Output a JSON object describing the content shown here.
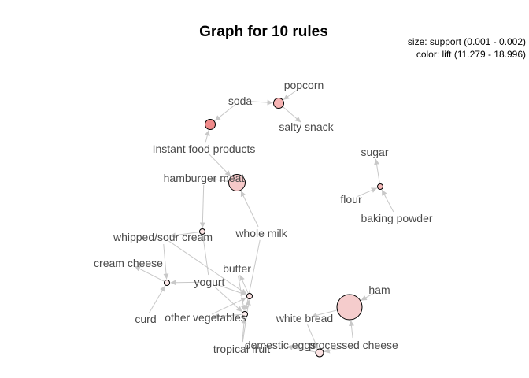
{
  "title": "Graph for 10 rules",
  "legend": {
    "size": "size: support (0.001 - 0.002)",
    "color": "color: lift (11.279 - 18.996)"
  },
  "colors": {
    "edge": "#c8c8c8",
    "node_stroke": "#000000",
    "label": "#4a4a4a"
  },
  "items": [
    {
      "id": "popcorn",
      "label": "popcorn"
    },
    {
      "id": "soda",
      "label": "soda"
    },
    {
      "id": "salty_snack",
      "label": "salty snack"
    },
    {
      "id": "instant_food",
      "label": "Instant food products"
    },
    {
      "id": "hamburger_meat",
      "label": "hamburger meat"
    },
    {
      "id": "sugar",
      "label": "sugar"
    },
    {
      "id": "flour",
      "label": "flour"
    },
    {
      "id": "baking_powder",
      "label": "baking powder"
    },
    {
      "id": "whole_milk",
      "label": "whole milk"
    },
    {
      "id": "whipped_sour_cream",
      "label": "whipped/sour cream"
    },
    {
      "id": "cream_cheese",
      "label": "cream cheese"
    },
    {
      "id": "butter",
      "label": "butter"
    },
    {
      "id": "yogurt",
      "label": "yogurt"
    },
    {
      "id": "ham",
      "label": "ham"
    },
    {
      "id": "curd",
      "label": "curd"
    },
    {
      "id": "other_vegetables",
      "label": "other vegetables"
    },
    {
      "id": "white_bread",
      "label": "white bread"
    },
    {
      "id": "domestic_eggs",
      "label": "domestic eggs"
    },
    {
      "id": "processed_cheese",
      "label": "processed cheese"
    },
    {
      "id": "tropical_fruit",
      "label": "tropical fruit"
    }
  ],
  "rules": [
    {
      "id": "r1",
      "fill": "#f6b3b3"
    },
    {
      "id": "r2",
      "fill": "#f08a8a"
    },
    {
      "id": "r3",
      "fill": "#f6c9c9"
    },
    {
      "id": "r4",
      "fill": "#f6b9b9"
    },
    {
      "id": "r5",
      "fill": "#fbe4e4"
    },
    {
      "id": "r6",
      "fill": "#fdeaea"
    },
    {
      "id": "r7",
      "fill": "#fce2e2"
    },
    {
      "id": "r8",
      "fill": "#fdeeee"
    },
    {
      "id": "r9",
      "fill": "#f5cccc"
    },
    {
      "id": "r10",
      "fill": "#fbe2e2"
    }
  ],
  "edges": [
    [
      "popcorn",
      "r1"
    ],
    [
      "soda",
      "r1"
    ],
    [
      "r1",
      "salty_snack"
    ],
    [
      "soda",
      "r2"
    ],
    [
      "instant_food",
      "r2"
    ],
    [
      "instant_food",
      "r3"
    ],
    [
      "whole_milk",
      "r3"
    ],
    [
      "r3",
      "hamburger_meat"
    ],
    [
      "flour",
      "r4"
    ],
    [
      "baking_powder",
      "r4"
    ],
    [
      "r4",
      "sugar"
    ],
    [
      "hamburger_meat",
      "r5"
    ],
    [
      "yogurt",
      "r5"
    ],
    [
      "r5",
      "whipped_sour_cream"
    ],
    [
      "whipped_sour_cream",
      "r6"
    ],
    [
      "yogurt",
      "r6"
    ],
    [
      "curd",
      "r6"
    ],
    [
      "r6",
      "cream_cheese"
    ],
    [
      "whipped_sour_cream",
      "r7"
    ],
    [
      "yogurt",
      "r7"
    ],
    [
      "other_vegetables",
      "r7"
    ],
    [
      "tropical_fruit",
      "r7"
    ],
    [
      "r7",
      "butter"
    ],
    [
      "whole_milk",
      "r8"
    ],
    [
      "yogurt",
      "r8"
    ],
    [
      "butter",
      "r8"
    ],
    [
      "tropical_fruit",
      "r8"
    ],
    [
      "r8",
      "other_vegetables"
    ],
    [
      "ham",
      "r9"
    ],
    [
      "processed_cheese",
      "r9"
    ],
    [
      "r9",
      "white_bread"
    ],
    [
      "white_bread",
      "r10"
    ],
    [
      "processed_cheese",
      "r10"
    ],
    [
      "r10",
      "domestic_eggs"
    ]
  ]
}
